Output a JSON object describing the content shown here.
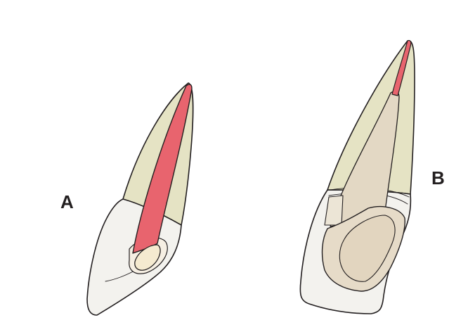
{
  "labels": {
    "a": "A",
    "b": "B"
  },
  "colors": {
    "root": "#e5e3c4",
    "pulp": "#e8646e",
    "crown": "#f3f2ee",
    "access": "#f5ead0",
    "post": "#e3d8c4",
    "core": "#e6dbc8",
    "outline": "#231f20"
  }
}
